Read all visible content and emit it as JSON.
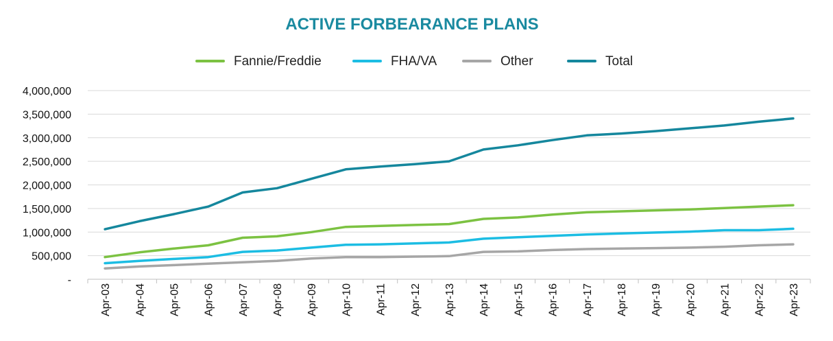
{
  "chart_data": {
    "type": "line",
    "title": "ACTIVE FORBEARANCE PLANS",
    "xlabel": "",
    "ylabel": "",
    "ylim": [
      0,
      4000000
    ],
    "y_ticks": [
      0,
      500000,
      1000000,
      1500000,
      2000000,
      2500000,
      3000000,
      3500000,
      4000000
    ],
    "y_tick_labels": [
      "-",
      "500,000",
      "1,000,000",
      "1,500,000",
      "2,000,000",
      "2,500,000",
      "3,000,000",
      "3,500,000",
      "4,000,000"
    ],
    "grid": true,
    "legend_position": "top-center",
    "categories": [
      "Apr-03",
      "Apr-04",
      "Apr-05",
      "Apr-06",
      "Apr-07",
      "Apr-08",
      "Apr-09",
      "Apr-10",
      "Apr-11",
      "Apr-12",
      "Apr-13",
      "Apr-14",
      "Apr-15",
      "Apr-16",
      "Apr-17",
      "Apr-18",
      "Apr-19",
      "Apr-20",
      "Apr-21",
      "Apr-22",
      "Apr-23"
    ],
    "series": [
      {
        "name": "Fannie/Freddie",
        "color": "#7cc242",
        "values": [
          470000,
          570000,
          650000,
          720000,
          880000,
          910000,
          1000000,
          1110000,
          1130000,
          1150000,
          1170000,
          1280000,
          1310000,
          1370000,
          1420000,
          1440000,
          1460000,
          1480000,
          1510000,
          1540000,
          1570000
        ]
      },
      {
        "name": "FHA/VA",
        "color": "#1cbde3",
        "values": [
          340000,
          390000,
          430000,
          470000,
          580000,
          610000,
          670000,
          730000,
          740000,
          760000,
          780000,
          860000,
          890000,
          920000,
          950000,
          970000,
          990000,
          1010000,
          1040000,
          1040000,
          1070000
        ]
      },
      {
        "name": "Other",
        "color": "#a6a6a6",
        "values": [
          230000,
          270000,
          300000,
          330000,
          360000,
          390000,
          440000,
          470000,
          470000,
          480000,
          490000,
          580000,
          590000,
          620000,
          640000,
          650000,
          660000,
          670000,
          690000,
          720000,
          740000
        ]
      },
      {
        "name": "Total",
        "color": "#15879d",
        "values": [
          1060000,
          1230000,
          1380000,
          1540000,
          1840000,
          1930000,
          2130000,
          2330000,
          2390000,
          2440000,
          2500000,
          2750000,
          2840000,
          2950000,
          3050000,
          3090000,
          3140000,
          3200000,
          3260000,
          3340000,
          3410000
        ]
      }
    ]
  }
}
